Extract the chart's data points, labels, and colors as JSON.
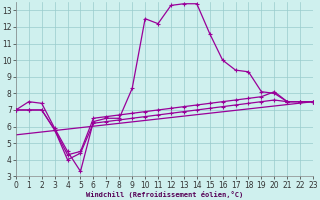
{
  "background_color": "#cff0ee",
  "grid_color": "#99cccc",
  "line_color": "#990099",
  "xlabel": "Windchill (Refroidissement éolien,°C)",
  "xlabel_color": "#550055",
  "xlim": [
    0,
    23
  ],
  "ylim": [
    3,
    13.5
  ],
  "xticks": [
    0,
    1,
    2,
    3,
    4,
    5,
    6,
    7,
    8,
    9,
    10,
    11,
    12,
    13,
    14,
    15,
    16,
    17,
    18,
    19,
    20,
    21,
    22,
    23
  ],
  "yticks": [
    3,
    4,
    5,
    6,
    7,
    8,
    9,
    10,
    11,
    12,
    13
  ],
  "tick_labelsize": 5.5,
  "lines": [
    {
      "x": [
        0,
        1,
        2,
        3,
        4,
        5,
        6,
        7,
        8,
        9,
        10,
        11,
        12,
        13,
        14,
        15,
        16,
        17,
        18,
        19,
        20,
        21,
        22,
        23
      ],
      "y": [
        7.0,
        7.5,
        7.4,
        5.9,
        4.5,
        3.3,
        6.3,
        6.5,
        6.5,
        8.3,
        12.5,
        12.2,
        13.3,
        13.4,
        13.4,
        11.6,
        10.0,
        9.4,
        9.3,
        8.1,
        8.0,
        7.5,
        7.5,
        7.5
      ],
      "marker": true,
      "linewidth": 0.9
    },
    {
      "x": [
        0,
        1,
        2,
        3,
        4,
        5,
        6,
        7,
        8,
        9,
        10,
        11,
        12,
        13,
        14,
        15,
        16,
        17,
        18,
        19,
        20,
        21,
        22,
        23
      ],
      "y": [
        7.0,
        7.0,
        7.0,
        5.8,
        4.3,
        4.5,
        6.5,
        6.6,
        6.7,
        6.8,
        6.9,
        7.0,
        7.1,
        7.2,
        7.3,
        7.4,
        7.5,
        7.6,
        7.7,
        7.8,
        8.1,
        7.5,
        7.5,
        7.5
      ],
      "marker": true,
      "linewidth": 0.9
    },
    {
      "x": [
        0,
        1,
        2,
        3,
        4,
        5,
        6,
        7,
        8,
        9,
        10,
        11,
        12,
        13,
        14,
        15,
        16,
        17,
        18,
        19,
        20,
        21,
        22,
        23
      ],
      "y": [
        7.0,
        7.0,
        7.0,
        5.8,
        4.0,
        4.4,
        6.2,
        6.3,
        6.4,
        6.5,
        6.6,
        6.7,
        6.8,
        6.9,
        7.0,
        7.1,
        7.2,
        7.3,
        7.4,
        7.5,
        7.6,
        7.5,
        7.5,
        7.5
      ],
      "marker": true,
      "linewidth": 0.9
    },
    {
      "x": [
        0,
        23
      ],
      "y": [
        5.5,
        7.5
      ],
      "marker": false,
      "linewidth": 0.9
    }
  ],
  "figsize": [
    3.2,
    2.0
  ],
  "dpi": 100
}
